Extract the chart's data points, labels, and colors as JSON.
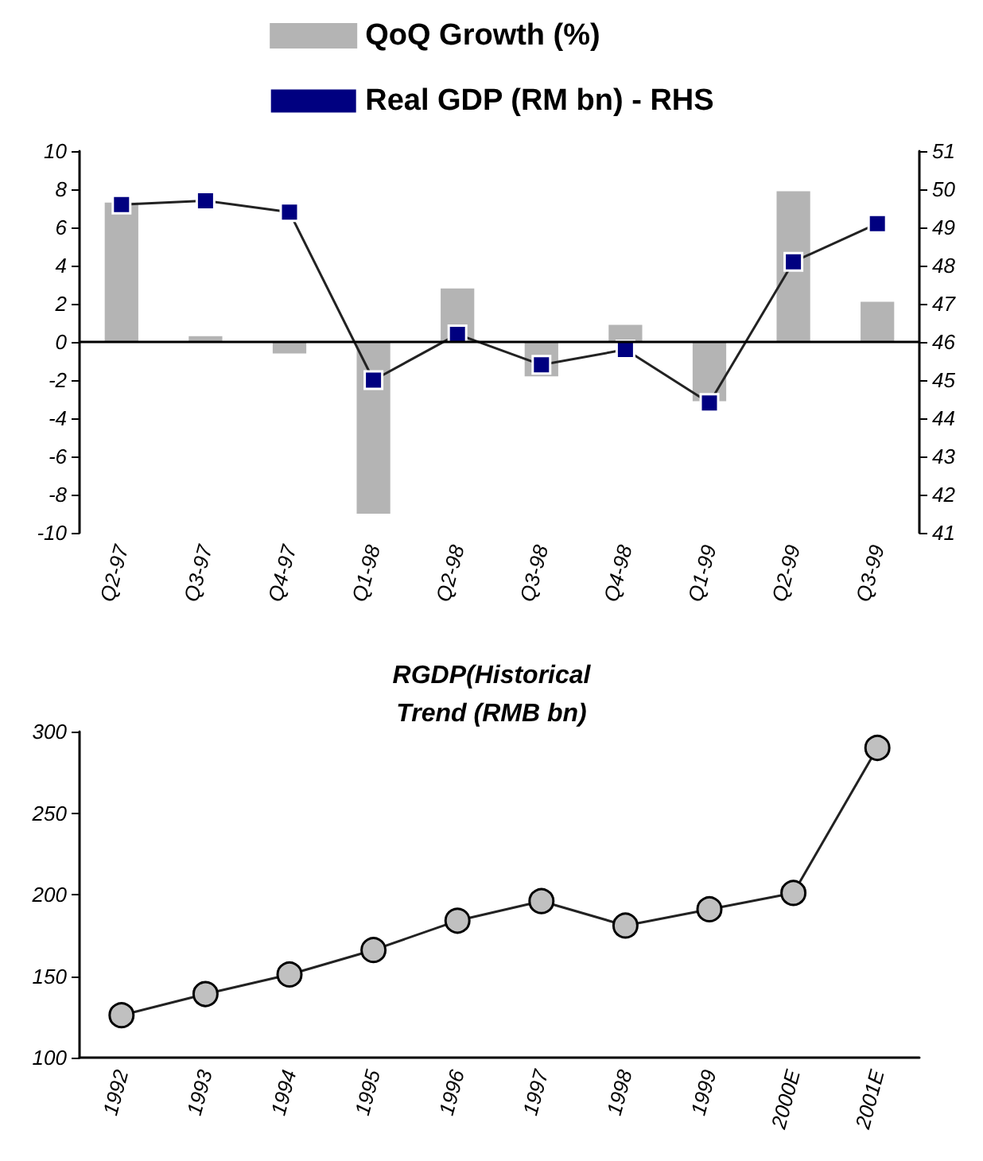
{
  "chart_data": [
    {
      "type": "bar",
      "categories": [
        "Q2-97",
        "Q3-97",
        "Q4-97",
        "Q1-98",
        "Q2-98",
        "Q3-98",
        "Q4-98",
        "Q1-99",
        "Q2-99",
        "Q3-99"
      ],
      "series": [
        {
          "name": "QoQ Growth (%)",
          "color": "#b4b4b4",
          "values": [
            7.3,
            0.3,
            -0.6,
            -9,
            2.8,
            -1.8,
            0.9,
            -3.1,
            7.9,
            2.1
          ]
        },
        {
          "name": "Real GDP (RM bn) - RHS",
          "type": "line",
          "axis": "y2",
          "color": "#000080",
          "marker": "square",
          "values": [
            49.6,
            49.7,
            49.4,
            45.0,
            46.2,
            45.4,
            45.8,
            44.4,
            48.1,
            49.1
          ]
        }
      ],
      "ylim": [
        -10,
        10
      ],
      "yticks": [
        -10,
        -8,
        -6,
        -4,
        -2,
        0,
        2,
        4,
        6,
        8,
        10
      ],
      "y2lim": [
        41,
        51
      ],
      "y2ticks": [
        41,
        42,
        43,
        44,
        45,
        46,
        47,
        48,
        49,
        50,
        51
      ],
      "ref_lines": [
        {
          "axis": "y",
          "value": 0,
          "color": "#000000"
        }
      ],
      "legend": "top",
      "grid": false
    },
    {
      "type": "line",
      "title": "RGDP(Historical\nTrend (RMB bn)",
      "categories": [
        "1992",
        "1993",
        "1994",
        "1995",
        "1996",
        "1997",
        "1998",
        "1999",
        "2000E",
        "2001E"
      ],
      "series": [
        {
          "color": "#c0c0c0",
          "values": [
            126,
            139,
            151,
            166,
            184,
            196,
            181,
            191,
            201,
            290
          ]
        }
      ],
      "marker": "circle",
      "ylim": [
        100,
        300
      ],
      "yticks": [
        100,
        150,
        200,
        250,
        300
      ],
      "legend": false,
      "grid": false
    }
  ]
}
